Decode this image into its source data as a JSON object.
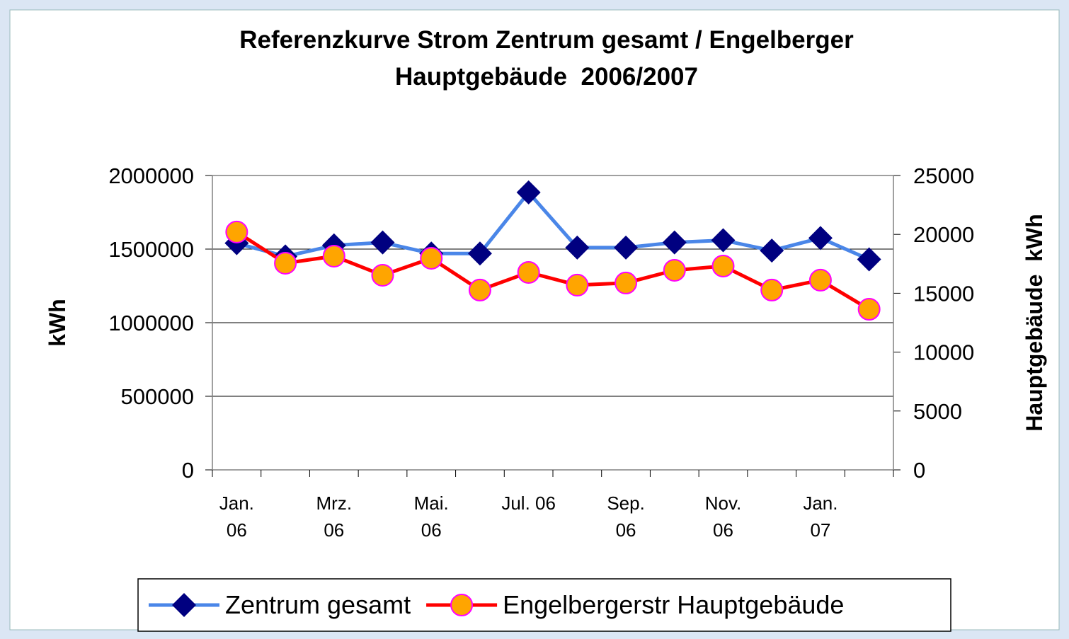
{
  "chart_data": {
    "type": "line",
    "title": "Referenzkurve Strom Zentrum gesamt / Engelberger",
    "subtitle": "Hauptgebäude  2006/2007",
    "ylabel": "kWh",
    "y2label": "Hauptgebäude  kWh",
    "categories": [
      "Jan. 06",
      null,
      "Mrz. 06",
      null,
      "Mai. 06",
      null,
      "Jul. 06",
      null,
      "Sep. 06",
      null,
      "Nov. 06",
      null,
      "Jan. 07",
      null
    ],
    "series": [
      {
        "name": "Zentrum gesamt",
        "color": "#4a86e8",
        "marker": "diamond",
        "marker_color": "#000080",
        "values": [
          1540000,
          1450000,
          1525000,
          1545000,
          1470000,
          1470000,
          1885000,
          1510000,
          1510000,
          1545000,
          1560000,
          1490000,
          1575000,
          1430000
        ]
      },
      {
        "name": "Engelbergerstr Hauptgebäude",
        "color": "#ff0000",
        "marker": "circle",
        "marker_color": "#ffa500",
        "axis": "y2",
        "values": [
          20200,
          17550,
          18150,
          16530,
          17970,
          15270,
          16770,
          15690,
          15870,
          16950,
          17310,
          15270,
          16110,
          13640
        ]
      }
    ],
    "ylim": [
      0,
      2000000
    ],
    "yticks": [
      0,
      500000,
      1000000,
      1500000,
      2000000
    ],
    "y2lim": [
      0,
      25000
    ],
    "y2ticks": [
      0,
      5000,
      10000,
      15000,
      20000,
      25000
    ],
    "grid": true
  }
}
